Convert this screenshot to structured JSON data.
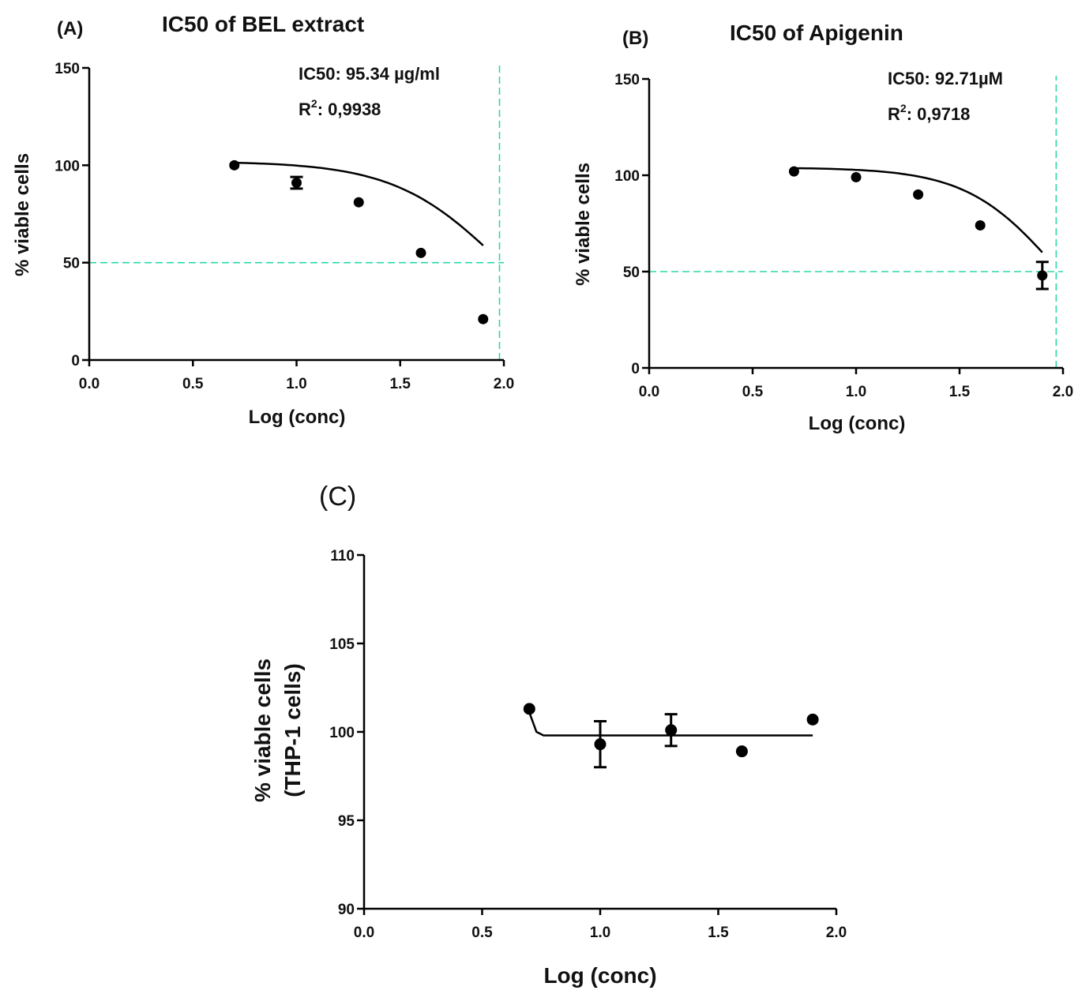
{
  "chart_data": [
    {
      "type": "line",
      "panel_label": "(A)",
      "title": "IC50 of BEL extract",
      "xlabel": "Log (conc)",
      "ylabel": "% viable cells",
      "xlim": [
        0.0,
        2.0
      ],
      "ylim": [
        0,
        150
      ],
      "xticks": [
        "0.0",
        "0.5",
        "1.0",
        "1.5",
        "2.0"
      ],
      "yticks": [
        "0",
        "50",
        "100",
        "150"
      ],
      "points": [
        {
          "x": 0.7,
          "y": 100
        },
        {
          "x": 1.0,
          "y": 91,
          "err": 3
        },
        {
          "x": 1.3,
          "y": 81
        },
        {
          "x": 1.6,
          "y": 55
        },
        {
          "x": 1.9,
          "y": 21
        }
      ],
      "fit": {
        "top": 102,
        "bottom": 0,
        "logIC50": 1.979,
        "hill": 1.7,
        "x_range": [
          0.7,
          1.9
        ]
      },
      "reference_lines": {
        "y": 50,
        "x": 1.979
      },
      "ic50_text": "IC50: 95.34 µg/ml",
      "r2_label": "R",
      "r2_sup": "2",
      "r2_value": ": 0,9938"
    },
    {
      "type": "line",
      "panel_label": "(B)",
      "title": "IC50 of Apigenin",
      "xlabel": "Log (conc)",
      "ylabel": "% viable cells",
      "xlim": [
        0.0,
        2.0
      ],
      "ylim": [
        0,
        150
      ],
      "xticks": [
        "0.0",
        "0.5",
        "1.0",
        "1.5",
        "2.0"
      ],
      "yticks": [
        "0",
        "50",
        "100",
        "150"
      ],
      "points": [
        {
          "x": 0.7,
          "y": 102
        },
        {
          "x": 1.0,
          "y": 99
        },
        {
          "x": 1.3,
          "y": 90
        },
        {
          "x": 1.6,
          "y": 74
        },
        {
          "x": 1.9,
          "y": 48,
          "err": 7
        }
      ],
      "fit": {
        "top": 104,
        "bottom": 0,
        "logIC50": 1.967,
        "hill": 2.0,
        "x_range": [
          0.7,
          1.9
        ]
      },
      "reference_lines": {
        "y": 50,
        "x": 1.967
      },
      "ic50_text": "IC50: 92.71µM",
      "r2_label": "R",
      "r2_sup": "2",
      "r2_value": ": 0,9718"
    },
    {
      "type": "line",
      "panel_label": "(C)",
      "title": "",
      "xlabel": "Log (conc)",
      "ylabel_line1": "% viable cells",
      "ylabel_line2": "(THP-1 cells)",
      "xlim": [
        0.0,
        2.0
      ],
      "ylim": [
        90,
        110
      ],
      "xticks": [
        "0.0",
        "0.5",
        "1.0",
        "1.5",
        "2.0"
      ],
      "yticks": [
        "90",
        "95",
        "100",
        "105",
        "110"
      ],
      "points": [
        {
          "x": 0.7,
          "y": 101.3
        },
        {
          "x": 1.0,
          "y": 99.3,
          "err": 1.3
        },
        {
          "x": 1.3,
          "y": 100.1,
          "err": 0.9
        },
        {
          "x": 1.6,
          "y": 98.9
        },
        {
          "x": 1.9,
          "y": 100.7
        }
      ],
      "fit_line": [
        [
          0.7,
          101.1
        ],
        [
          0.73,
          100.0
        ],
        [
          0.76,
          99.8
        ],
        [
          1.9,
          99.8
        ]
      ]
    }
  ]
}
